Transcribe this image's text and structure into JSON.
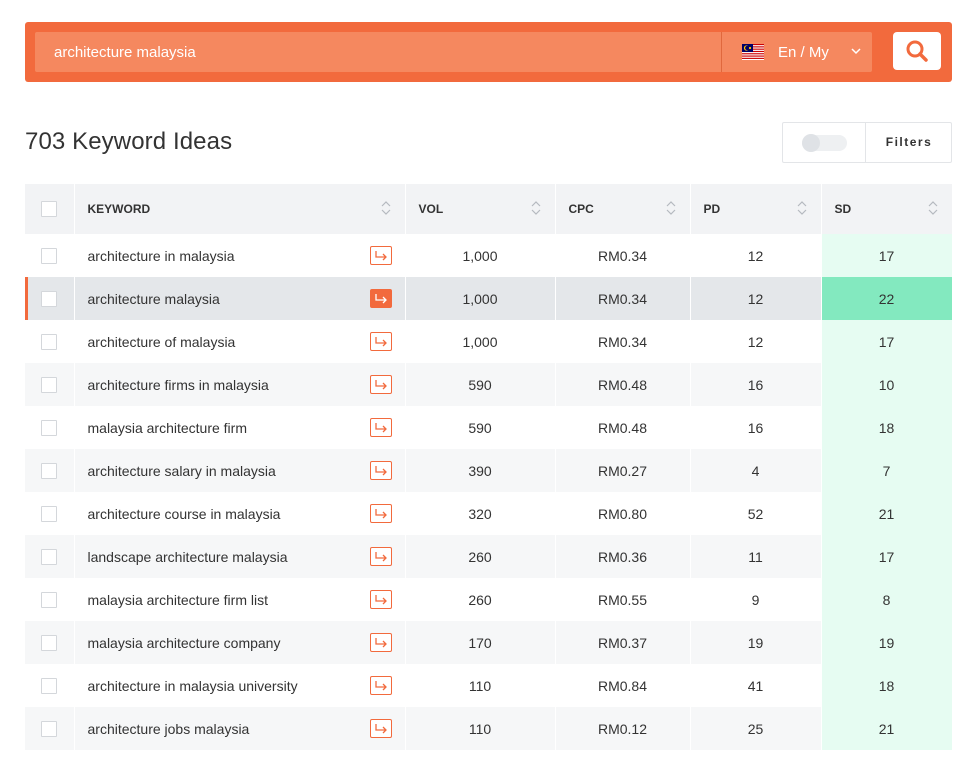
{
  "search": {
    "query": "architecture malaysia",
    "language_label": "En / My",
    "flag_icon": "malaysia-flag-icon",
    "button_icon": "search-icon"
  },
  "results": {
    "count_title": "703 Keyword Ideas",
    "filters_label": "Filters",
    "filters_toggle_on": false
  },
  "table": {
    "headers": {
      "keyword": "KEYWORD",
      "vol": "VOL",
      "cpc": "CPC",
      "pd": "PD",
      "sd": "SD"
    },
    "rows": [
      {
        "keyword": "architecture in malaysia",
        "vol": "1,000",
        "cpc": "RM0.34",
        "pd": "12",
        "sd": "17",
        "selected": false
      },
      {
        "keyword": "architecture malaysia",
        "vol": "1,000",
        "cpc": "RM0.34",
        "pd": "12",
        "sd": "22",
        "selected": true
      },
      {
        "keyword": "architecture of malaysia",
        "vol": "1,000",
        "cpc": "RM0.34",
        "pd": "12",
        "sd": "17",
        "selected": false
      },
      {
        "keyword": "architecture firms in malaysia",
        "vol": "590",
        "cpc": "RM0.48",
        "pd": "16",
        "sd": "10",
        "selected": false
      },
      {
        "keyword": "malaysia architecture firm",
        "vol": "590",
        "cpc": "RM0.48",
        "pd": "16",
        "sd": "18",
        "selected": false
      },
      {
        "keyword": "architecture salary in malaysia",
        "vol": "390",
        "cpc": "RM0.27",
        "pd": "4",
        "sd": "7",
        "selected": false
      },
      {
        "keyword": "architecture course in malaysia",
        "vol": "320",
        "cpc": "RM0.80",
        "pd": "52",
        "sd": "21",
        "selected": false
      },
      {
        "keyword": "landscape architecture malaysia",
        "vol": "260",
        "cpc": "RM0.36",
        "pd": "11",
        "sd": "17",
        "selected": false
      },
      {
        "keyword": "malaysia architecture firm list",
        "vol": "260",
        "cpc": "RM0.55",
        "pd": "9",
        "sd": "8",
        "selected": false
      },
      {
        "keyword": "malaysia architecture company",
        "vol": "170",
        "cpc": "RM0.37",
        "pd": "19",
        "sd": "19",
        "selected": false
      },
      {
        "keyword": "architecture in malaysia university",
        "vol": "110",
        "cpc": "RM0.84",
        "pd": "41",
        "sd": "18",
        "selected": false
      },
      {
        "keyword": "architecture jobs malaysia",
        "vol": "110",
        "cpc": "RM0.12",
        "pd": "25",
        "sd": "21",
        "selected": false
      }
    ]
  },
  "colors": {
    "accent": "#f26a3d",
    "sd_bg": "#e6fcf2",
    "sd_selected_bg": "#83e9bf"
  }
}
